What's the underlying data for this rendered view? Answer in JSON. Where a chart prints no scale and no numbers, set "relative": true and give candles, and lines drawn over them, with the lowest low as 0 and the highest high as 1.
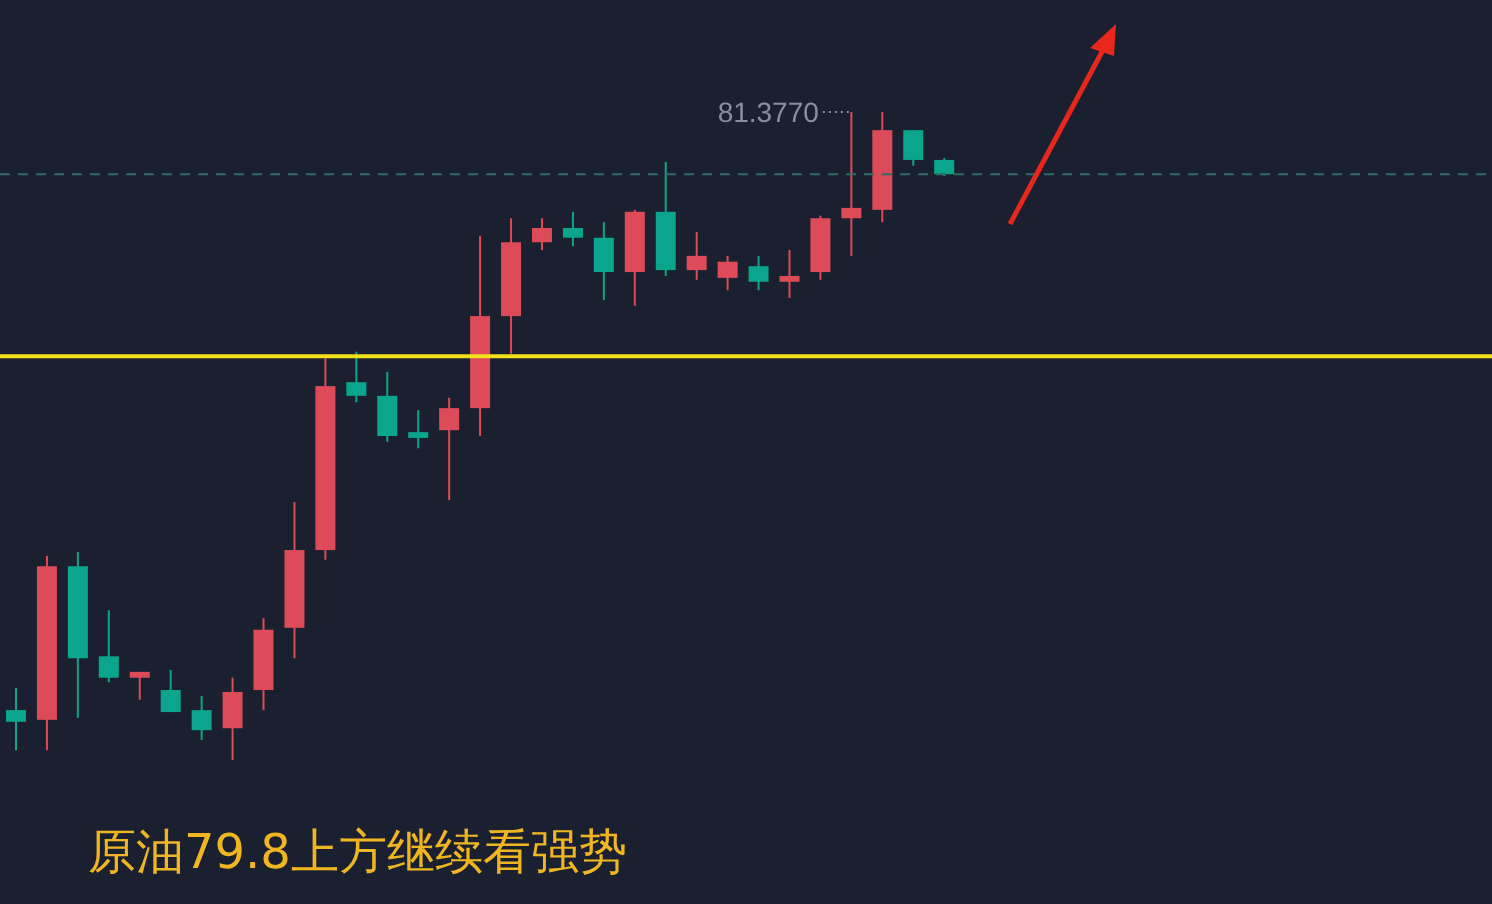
{
  "chart_data": {
    "type": "candlestick",
    "relative": true,
    "categories": [
      null,
      null,
      null,
      null,
      null,
      null,
      null,
      null,
      null,
      null,
      null,
      null,
      null,
      null,
      null,
      null,
      null,
      null,
      null,
      null,
      null,
      null,
      null,
      null,
      null,
      null,
      null,
      null,
      null,
      null,
      null
    ],
    "ohlc": [
      [
        0.077,
        0.111,
        0.015,
        0.059
      ],
      [
        0.062,
        0.315,
        0.015,
        0.299
      ],
      [
        0.299,
        0.321,
        0.065,
        0.157
      ],
      [
        0.16,
        0.231,
        0.12,
        0.127
      ],
      [
        0.127,
        0.136,
        0.093,
        0.136
      ],
      [
        0.108,
        0.139,
        0.074,
        0.074
      ],
      [
        0.077,
        0.099,
        0.031,
        0.046
      ],
      [
        0.049,
        0.127,
        0,
        0.105
      ],
      [
        0.108,
        0.219,
        0.077,
        0.201
      ],
      [
        0.204,
        0.398,
        0.157,
        0.324
      ],
      [
        0.324,
        0.62,
        0.309,
        0.577
      ],
      [
        0.583,
        0.63,
        0.552,
        0.562
      ],
      [
        0.562,
        0.599,
        0.491,
        0.5
      ],
      [
        0.506,
        0.54,
        0.481,
        0.497
      ],
      [
        0.509,
        0.559,
        0.401,
        0.543
      ],
      [
        0.543,
        0.809,
        0.5,
        0.685
      ],
      [
        0.685,
        0.836,
        0.627,
        0.799
      ],
      [
        0.799,
        0.836,
        0.787,
        0.821
      ],
      [
        0.821,
        0.846,
        0.793,
        0.806
      ],
      [
        0.806,
        0.83,
        0.71,
        0.753
      ],
      [
        0.753,
        0.849,
        0.701,
        0.846
      ],
      [
        0.846,
        0.923,
        0.747,
        0.756
      ],
      [
        0.756,
        0.815,
        0.741,
        0.778
      ],
      [
        0.744,
        0.778,
        0.725,
        0.769
      ],
      [
        0.762,
        0.778,
        0.725,
        0.738
      ],
      [
        0.738,
        0.787,
        0.713,
        0.747
      ],
      [
        0.753,
        0.84,
        0.741,
        0.836
      ],
      [
        0.836,
        1,
        0.778,
        0.852
      ],
      [
        0.849,
        1,
        0.83,
        0.972
      ],
      [
        0.972,
        0.972,
        0.917,
        0.926
      ],
      [
        0.926,
        0.929,
        0.901,
        0.904
      ]
    ],
    "colors": [
      "#0aa58c",
      "#dc4b57",
      "#0aa58c",
      "#0aa58c",
      "#dc4b57",
      "#0aa58c",
      "#0aa58c",
      "#dc4b57",
      "#dc4b57",
      "#dc4b57",
      "#dc4b57",
      "#0aa58c",
      "#0aa58c",
      "#0aa58c",
      "#dc4b57",
      "#dc4b57",
      "#dc4b57",
      "#dc4b57",
      "#0aa58c",
      "#0aa58c",
      "#dc4b57",
      "#0aa58c",
      "#dc4b57",
      "#dc4b57",
      "#0aa58c",
      "#dc4b57",
      "#dc4b57",
      "#dc4b57",
      "#dc4b57",
      "#0aa58c",
      "#0aa58c"
    ],
    "ref_lines": [
      {
        "axis": "y",
        "value": 0.623,
        "color": "#f2e21b",
        "line_style": "solid"
      },
      {
        "axis": "y",
        "value": 0.904,
        "color": "#2f6b66",
        "line_style": "dashed"
      }
    ],
    "annotations": [
      "81.3770",
      "原油79.8上方继续看强势"
    ]
  }
}
